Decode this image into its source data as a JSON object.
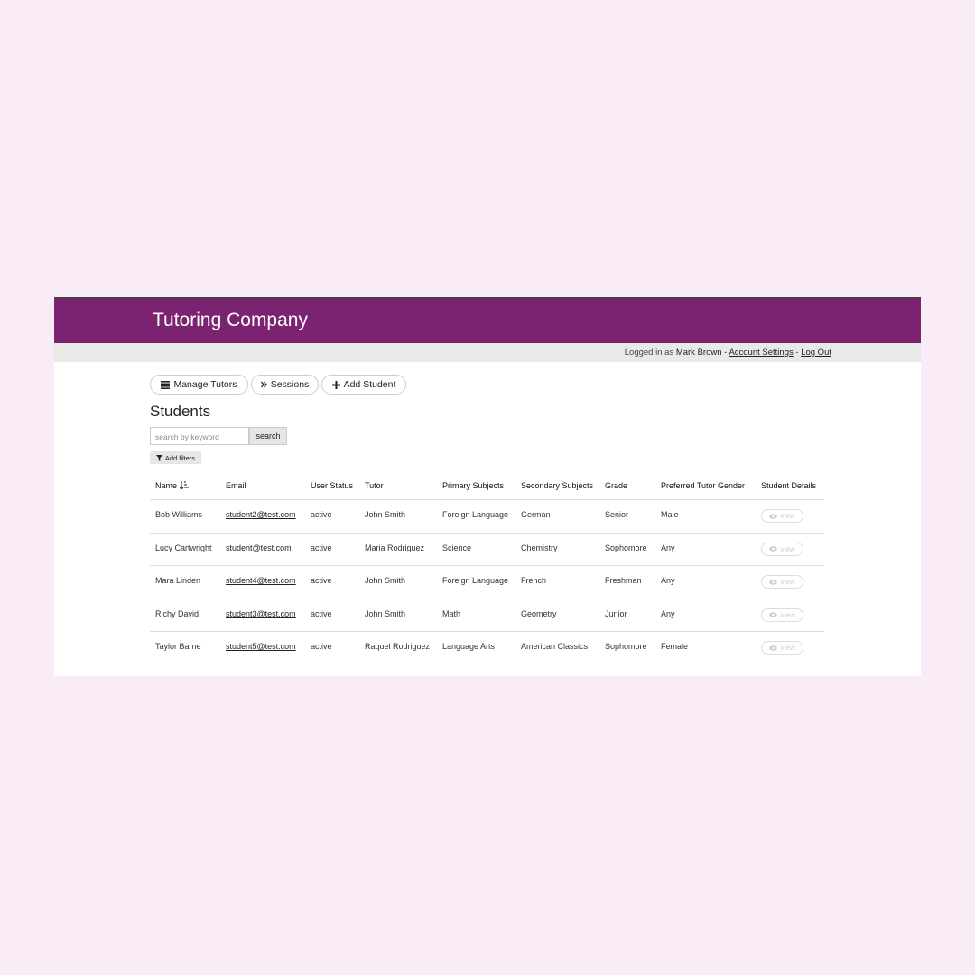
{
  "header": {
    "title": "Tutoring Company"
  },
  "user_bar": {
    "prefix": "Logged in as",
    "user": "Mark Brown",
    "separator": "-",
    "links": [
      "Account Settings",
      "Log Out"
    ]
  },
  "nav": [
    "Manage Tutors",
    "Sessions",
    "Add Student"
  ],
  "section_title": "Students",
  "search": {
    "placeholder": "search by keyword",
    "button": "search"
  },
  "filter_button": "Add filters",
  "table": {
    "columns": [
      "Name",
      "Email",
      "User Status",
      "Tutor",
      "Primary Subjects",
      "Secondary Subjects",
      "Grade",
      "Preferred Tutor Gender",
      "Student Details"
    ],
    "rows": [
      [
        "Bob Williams",
        "student2@test.com",
        "active",
        "John Smith",
        "Foreign Language",
        "German",
        "Senior",
        "Male",
        "view"
      ],
      [
        "Lucy Cartwright",
        "student@test.com",
        "active",
        "Maria Rodriguez",
        "Science",
        "Chemistry",
        "Sophomore",
        "Any",
        "view"
      ],
      [
        "Mara Linden",
        "student4@test.com",
        "active",
        "John Smith",
        "Foreign Language",
        "French",
        "Freshman",
        "Any",
        "view"
      ],
      [
        "Richy David",
        "student3@test.com",
        "active",
        "John Smith",
        "Math",
        "Geometry",
        "Junior",
        "Any",
        "view"
      ],
      [
        "Taylor Barne",
        "student5@test.com",
        "active",
        "Raquel Rodriguez",
        "Language Arts",
        "American Classics",
        "Sophomore",
        "Female",
        "view"
      ]
    ]
  }
}
